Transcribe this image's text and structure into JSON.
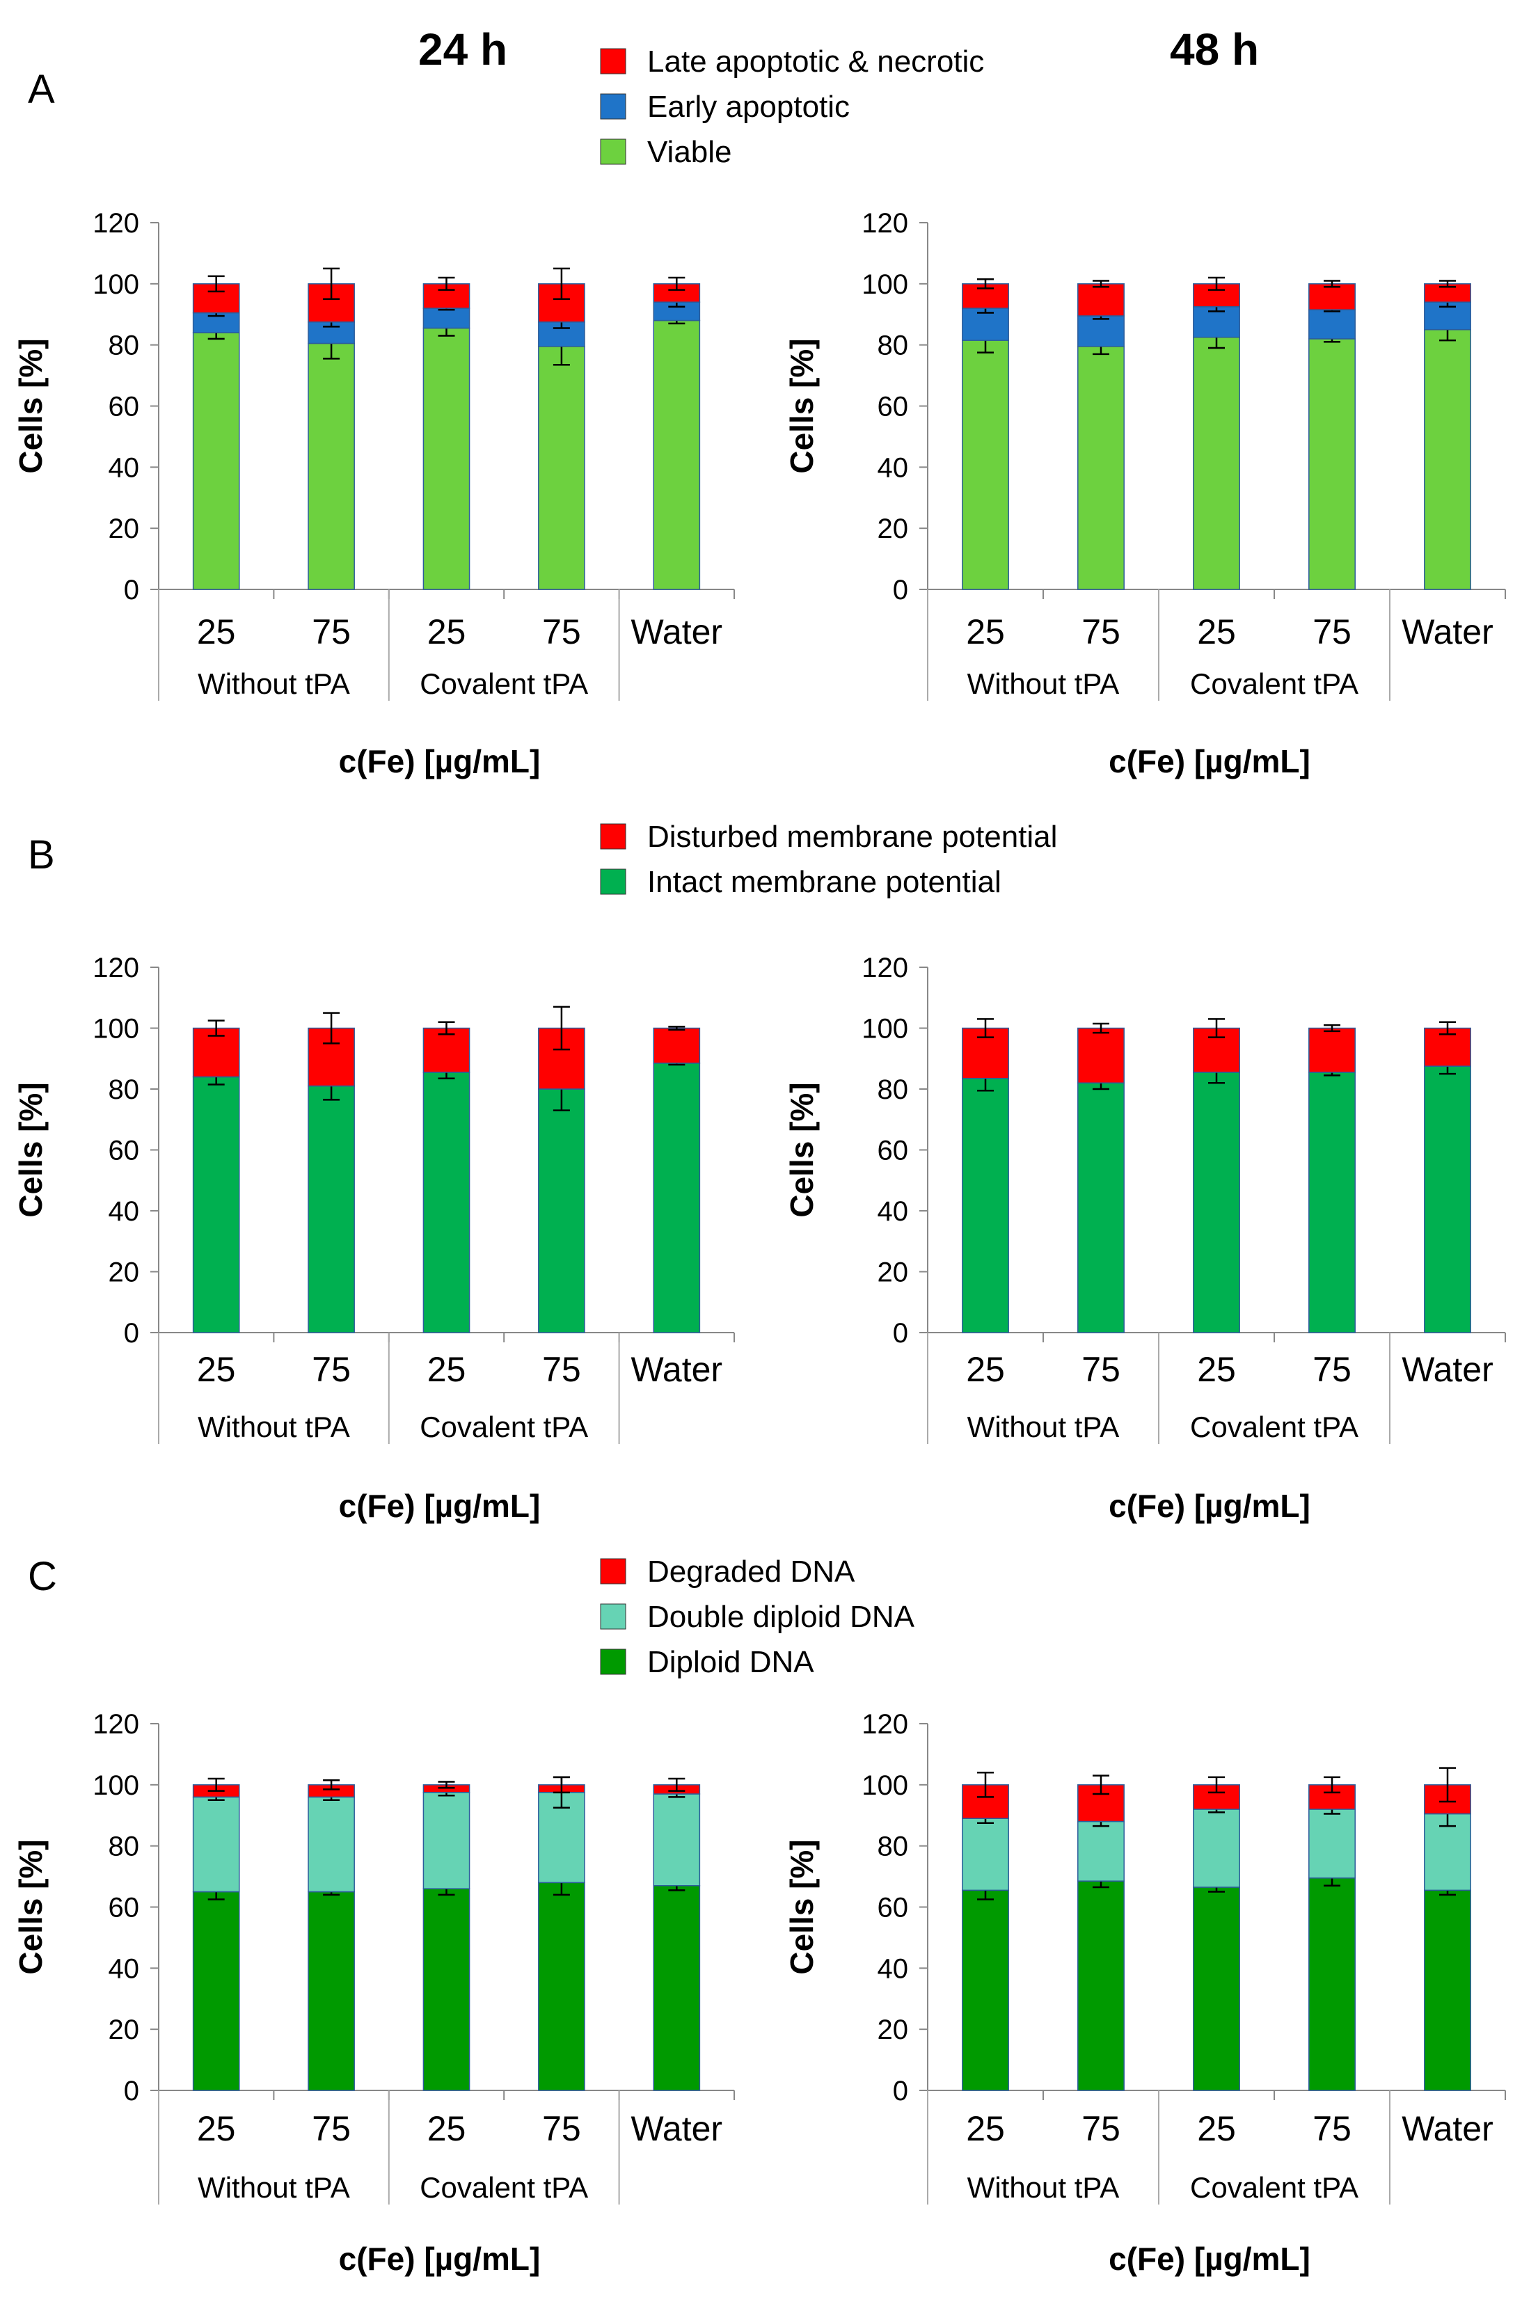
{
  "column_titles": [
    "24 h",
    "48 h"
  ],
  "panels": [
    {
      "letter": "A",
      "legend": [
        {
          "label": "Late apoptotic & necrotic",
          "color": "#ff0000"
        },
        {
          "label": "Early apoptotic",
          "color": "#1f74c8"
        },
        {
          "label": "Viable",
          "color": "#6dd13f"
        }
      ]
    },
    {
      "letter": "B",
      "legend": [
        {
          "label": "Disturbed membrane potential",
          "color": "#ff0000"
        },
        {
          "label": "Intact membrane potential",
          "color": "#00b050"
        }
      ]
    },
    {
      "letter": "C",
      "legend": [
        {
          "label": "Degraded DNA",
          "color": "#ff0000"
        },
        {
          "label": "Double diploid DNA",
          "color": "#66d3b4"
        },
        {
          "label": "Diploid DNA",
          "color": "#009a00"
        }
      ]
    }
  ],
  "chart_data": [
    {
      "type": "bar",
      "stacked": true,
      "panel": "A",
      "time": "24 h",
      "categories": [
        "25",
        "75",
        "25",
        "75",
        "Water"
      ],
      "groups": [
        {
          "label": "Without tPA",
          "span": 2
        },
        {
          "label": "Covalent tPA",
          "span": 2
        },
        {
          "label": "",
          "span": 1
        }
      ],
      "ylabel": "Cells [%]",
      "xlabel": "c(Fe) [µg/mL]",
      "ylim": [
        0,
        120
      ],
      "yticks": [
        0,
        20,
        40,
        60,
        80,
        100,
        120
      ],
      "series": [
        {
          "name": "Viable",
          "color": "#6dd13f",
          "values": [
            84,
            80.5,
            85.5,
            79.5,
            88
          ],
          "errors": [
            2,
            5,
            2.5,
            6,
            1
          ]
        },
        {
          "name": "Early apoptotic",
          "color": "#1f74c8",
          "values": [
            6.5,
            7,
            6.5,
            8,
            6
          ],
          "errors": [
            1,
            1.5,
            0.5,
            2,
            1.5
          ]
        },
        {
          "name": "Late apoptotic & necrotic",
          "color": "#ff0000",
          "values": [
            9.5,
            12.5,
            8,
            12.5,
            6
          ],
          "errors": [
            2.5,
            5,
            2,
            5,
            2
          ]
        }
      ]
    },
    {
      "type": "bar",
      "stacked": true,
      "panel": "A",
      "time": "48 h",
      "categories": [
        "25",
        "75",
        "25",
        "75",
        "Water"
      ],
      "groups": [
        {
          "label": "Without tPA",
          "span": 2
        },
        {
          "label": "Covalent tPA",
          "span": 2
        },
        {
          "label": "",
          "span": 1
        }
      ],
      "ylabel": "Cells [%]",
      "xlabel": "c(Fe) [µg/mL]",
      "ylim": [
        0,
        120
      ],
      "yticks": [
        0,
        20,
        40,
        60,
        80,
        100,
        120
      ],
      "series": [
        {
          "name": "Viable",
          "color": "#6dd13f",
          "values": [
            81.5,
            79.5,
            82.5,
            82,
            85
          ],
          "errors": [
            4,
            2.5,
            3.5,
            1,
            3.5
          ]
        },
        {
          "name": "Early apoptotic",
          "color": "#1f74c8",
          "values": [
            10.5,
            10,
            10,
            9.5,
            9
          ],
          "errors": [
            1.5,
            1,
            1.5,
            0.5,
            1.5
          ]
        },
        {
          "name": "Late apoptotic & necrotic",
          "color": "#ff0000",
          "values": [
            8,
            10.5,
            7.5,
            8.5,
            6
          ],
          "errors": [
            1.5,
            1,
            2,
            1,
            1
          ]
        }
      ]
    },
    {
      "type": "bar",
      "stacked": true,
      "panel": "B",
      "time": "24 h",
      "categories": [
        "25",
        "75",
        "25",
        "75",
        "Water"
      ],
      "groups": [
        {
          "label": "Without tPA",
          "span": 2
        },
        {
          "label": "Covalent tPA",
          "span": 2
        },
        {
          "label": "",
          "span": 1
        }
      ],
      "ylabel": "Cells [%]",
      "xlabel": "c(Fe) [µg/mL]",
      "ylim": [
        0,
        120
      ],
      "yticks": [
        0,
        20,
        40,
        60,
        80,
        100,
        120
      ],
      "series": [
        {
          "name": "Intact membrane potential",
          "color": "#00b050",
          "values": [
            84,
            81,
            85.5,
            80,
            88.5
          ],
          "errors": [
            2.5,
            4.5,
            2,
            7,
            0.5
          ]
        },
        {
          "name": "Disturbed membrane potential",
          "color": "#ff0000",
          "values": [
            16,
            19,
            14.5,
            20,
            11.5
          ],
          "errors": [
            2.5,
            5,
            2,
            7,
            0.5
          ]
        }
      ]
    },
    {
      "type": "bar",
      "stacked": true,
      "panel": "B",
      "time": "48 h",
      "categories": [
        "25",
        "75",
        "25",
        "75",
        "Water"
      ],
      "groups": [
        {
          "label": "Without tPA",
          "span": 2
        },
        {
          "label": "Covalent tPA",
          "span": 2
        },
        {
          "label": "",
          "span": 1
        }
      ],
      "ylabel": "Cells [%]",
      "xlabel": "c(Fe) [µg/mL]",
      "ylim": [
        0,
        120
      ],
      "yticks": [
        0,
        20,
        40,
        60,
        80,
        100,
        120
      ],
      "series": [
        {
          "name": "Intact membrane potential",
          "color": "#00b050",
          "values": [
            83.5,
            82,
            85.5,
            85.5,
            87.5
          ],
          "errors": [
            4,
            2,
            3.5,
            1,
            2.5
          ]
        },
        {
          "name": "Disturbed membrane potential",
          "color": "#ff0000",
          "values": [
            16.5,
            18,
            14.5,
            14.5,
            12.5
          ],
          "errors": [
            3,
            1.5,
            3,
            1,
            2
          ]
        }
      ]
    },
    {
      "type": "bar",
      "stacked": true,
      "panel": "C",
      "time": "24 h",
      "categories": [
        "25",
        "75",
        "25",
        "75",
        "Water"
      ],
      "groups": [
        {
          "label": "Without tPA",
          "span": 2
        },
        {
          "label": "Covalent tPA",
          "span": 2
        },
        {
          "label": "",
          "span": 1
        }
      ],
      "ylabel": "Cells [%]",
      "xlabel": "c(Fe) [µg/mL]",
      "ylim": [
        0,
        120
      ],
      "yticks": [
        0,
        20,
        40,
        60,
        80,
        100,
        120
      ],
      "series": [
        {
          "name": "Diploid DNA",
          "color": "#009a00",
          "values": [
            65,
            65,
            66,
            68,
            67
          ],
          "errors": [
            2.5,
            1,
            2,
            4,
            1.5
          ]
        },
        {
          "name": "Double diploid DNA",
          "color": "#66d3b4",
          "values": [
            31,
            31,
            31.5,
            29.5,
            30
          ],
          "errors": [
            1,
            1,
            1,
            5,
            1
          ]
        },
        {
          "name": "Degraded DNA",
          "color": "#ff0000",
          "values": [
            4,
            4,
            2.5,
            2.5,
            3
          ],
          "errors": [
            2,
            1.5,
            1,
            2.5,
            2
          ]
        }
      ]
    },
    {
      "type": "bar",
      "stacked": true,
      "panel": "C",
      "time": "48 h",
      "categories": [
        "25",
        "75",
        "25",
        "75",
        "Water"
      ],
      "groups": [
        {
          "label": "Without tPA",
          "span": 2
        },
        {
          "label": "Covalent tPA",
          "span": 2
        },
        {
          "label": "",
          "span": 1
        }
      ],
      "ylabel": "Cells [%]",
      "xlabel": "c(Fe) [µg/mL]",
      "ylim": [
        0,
        120
      ],
      "yticks": [
        0,
        20,
        40,
        60,
        80,
        100,
        120
      ],
      "series": [
        {
          "name": "Diploid DNA",
          "color": "#009a00",
          "values": [
            65.5,
            68.5,
            66.5,
            69.5,
            65.5
          ],
          "errors": [
            3,
            2,
            1.5,
            2.5,
            1.5
          ]
        },
        {
          "name": "Double diploid DNA",
          "color": "#66d3b4",
          "values": [
            23.5,
            19.5,
            25.5,
            22.5,
            25
          ],
          "errors": [
            1.5,
            1.5,
            1,
            1.5,
            4
          ]
        },
        {
          "name": "Degraded DNA",
          "color": "#ff0000",
          "values": [
            11,
            12,
            8,
            8,
            9.5
          ],
          "errors": [
            4,
            3,
            2.5,
            2.5,
            5.5
          ]
        }
      ]
    }
  ]
}
